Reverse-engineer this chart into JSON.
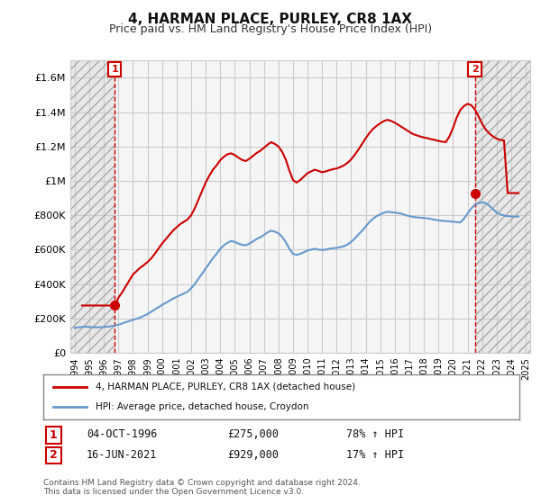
{
  "title": "4, HARMAN PLACE, PURLEY, CR8 1AX",
  "subtitle": "Price paid vs. HM Land Registry's House Price Index (HPI)",
  "legend_line1": "4, HARMAN PLACE, PURLEY, CR8 1AX (detached house)",
  "legend_line2": "HPI: Average price, detached house, Croydon",
  "annotation1_label": "1",
  "annotation1_date": "04-OCT-1996",
  "annotation1_price": "£275,000",
  "annotation1_hpi": "78% ↑ HPI",
  "annotation2_label": "2",
  "annotation2_date": "16-JUN-2021",
  "annotation2_price": "£929,000",
  "annotation2_hpi": "17% ↑ HPI",
  "footer": "Contains HM Land Registry data © Crown copyright and database right 2024.\nThis data is licensed under the Open Government Licence v3.0.",
  "hpi_years": [
    1994.0,
    1994.25,
    1994.5,
    1994.75,
    1995.0,
    1995.25,
    1995.5,
    1995.75,
    1996.0,
    1996.25,
    1996.5,
    1996.75,
    1997.0,
    1997.25,
    1997.5,
    1997.75,
    1998.0,
    1998.25,
    1998.5,
    1998.75,
    1999.0,
    1999.25,
    1999.5,
    1999.75,
    2000.0,
    2000.25,
    2000.5,
    2000.75,
    2001.0,
    2001.25,
    2001.5,
    2001.75,
    2002.0,
    2002.25,
    2002.5,
    2002.75,
    2003.0,
    2003.25,
    2003.5,
    2003.75,
    2004.0,
    2004.25,
    2004.5,
    2004.75,
    2005.0,
    2005.25,
    2005.5,
    2005.75,
    2006.0,
    2006.25,
    2006.5,
    2006.75,
    2007.0,
    2007.25,
    2007.5,
    2007.75,
    2008.0,
    2008.25,
    2008.5,
    2008.75,
    2009.0,
    2009.25,
    2009.5,
    2009.75,
    2010.0,
    2010.25,
    2010.5,
    2010.75,
    2011.0,
    2011.25,
    2011.5,
    2011.75,
    2012.0,
    2012.25,
    2012.5,
    2012.75,
    2013.0,
    2013.25,
    2013.5,
    2013.75,
    2014.0,
    2014.25,
    2014.5,
    2014.75,
    2015.0,
    2015.25,
    2015.5,
    2015.75,
    2016.0,
    2016.25,
    2016.5,
    2016.75,
    2017.0,
    2017.25,
    2017.5,
    2017.75,
    2018.0,
    2018.25,
    2018.5,
    2018.75,
    2019.0,
    2019.25,
    2019.5,
    2019.75,
    2020.0,
    2020.25,
    2020.5,
    2020.75,
    2021.0,
    2021.25,
    2021.5,
    2021.75,
    2022.0,
    2022.25,
    2022.5,
    2022.75,
    2023.0,
    2023.25,
    2023.5,
    2023.75,
    2024.0,
    2024.25,
    2024.5
  ],
  "hpi_values": [
    145000,
    148000,
    150000,
    152000,
    150000,
    149000,
    148000,
    149000,
    150000,
    152000,
    155000,
    158000,
    163000,
    170000,
    178000,
    185000,
    192000,
    198000,
    205000,
    215000,
    225000,
    238000,
    252000,
    265000,
    278000,
    290000,
    302000,
    315000,
    325000,
    335000,
    345000,
    355000,
    375000,
    400000,
    430000,
    460000,
    490000,
    520000,
    550000,
    575000,
    605000,
    625000,
    640000,
    650000,
    645000,
    635000,
    628000,
    625000,
    635000,
    648000,
    662000,
    672000,
    685000,
    700000,
    710000,
    705000,
    695000,
    675000,
    645000,
    605000,
    575000,
    570000,
    575000,
    585000,
    595000,
    600000,
    605000,
    600000,
    598000,
    600000,
    605000,
    608000,
    610000,
    615000,
    620000,
    630000,
    645000,
    665000,
    688000,
    710000,
    735000,
    760000,
    780000,
    795000,
    805000,
    815000,
    820000,
    818000,
    815000,
    812000,
    808000,
    800000,
    795000,
    790000,
    788000,
    786000,
    784000,
    782000,
    778000,
    774000,
    770000,
    768000,
    766000,
    765000,
    762000,
    760000,
    758000,
    780000,
    810000,
    840000,
    860000,
    870000,
    875000,
    870000,
    855000,
    835000,
    815000,
    805000,
    798000,
    795000,
    793000,
    792000,
    793000
  ],
  "red_years": [
    1994.5,
    1994.75,
    1995.0,
    1995.25,
    1995.5,
    1995.75,
    1996.0,
    1996.25,
    1996.5,
    1996.75,
    1997.0,
    1997.25,
    1997.5,
    1997.75,
    1998.0,
    1998.25,
    1998.5,
    1998.75,
    1999.0,
    1999.25,
    1999.5,
    1999.75,
    2000.0,
    2000.25,
    2000.5,
    2000.75,
    2001.0,
    2001.25,
    2001.5,
    2001.75,
    2002.0,
    2002.25,
    2002.5,
    2002.75,
    2003.0,
    2003.25,
    2003.5,
    2003.75,
    2004.0,
    2004.25,
    2004.5,
    2004.75,
    2005.0,
    2005.25,
    2005.5,
    2005.75,
    2006.0,
    2006.25,
    2006.5,
    2006.75,
    2007.0,
    2007.25,
    2007.5,
    2007.75,
    2008.0,
    2008.25,
    2008.5,
    2008.75,
    2009.0,
    2009.25,
    2009.5,
    2009.75,
    2010.0,
    2010.25,
    2010.5,
    2010.75,
    2011.0,
    2011.25,
    2011.5,
    2011.75,
    2012.0,
    2012.25,
    2012.5,
    2012.75,
    2013.0,
    2013.25,
    2013.5,
    2013.75,
    2014.0,
    2014.25,
    2014.5,
    2014.75,
    2015.0,
    2015.25,
    2015.5,
    2015.75,
    2016.0,
    2016.25,
    2016.5,
    2016.75,
    2017.0,
    2017.25,
    2017.5,
    2017.75,
    2018.0,
    2018.25,
    2018.5,
    2018.75,
    2019.0,
    2019.25,
    2019.5,
    2019.75,
    2020.0,
    2020.25,
    2020.5,
    2020.75,
    2021.0,
    2021.25,
    2021.5,
    2021.75,
    2022.0,
    2022.25,
    2022.5,
    2022.75,
    2023.0,
    2023.25,
    2023.5,
    2023.75,
    2024.0,
    2024.25,
    2024.5
  ],
  "red_values": [
    275000,
    275000,
    275000,
    275000,
    275000,
    275000,
    275000,
    275000,
    275000,
    275000,
    320000,
    350000,
    385000,
    420000,
    455000,
    475000,
    495000,
    510000,
    528000,
    548000,
    575000,
    605000,
    635000,
    660000,
    685000,
    710000,
    730000,
    748000,
    762000,
    775000,
    800000,
    840000,
    890000,
    940000,
    990000,
    1030000,
    1065000,
    1090000,
    1120000,
    1140000,
    1155000,
    1160000,
    1150000,
    1135000,
    1122000,
    1115000,
    1128000,
    1145000,
    1162000,
    1175000,
    1192000,
    1210000,
    1225000,
    1215000,
    1200000,
    1170000,
    1125000,
    1060000,
    1005000,
    990000,
    1005000,
    1025000,
    1045000,
    1055000,
    1065000,
    1058000,
    1050000,
    1055000,
    1062000,
    1068000,
    1072000,
    1080000,
    1090000,
    1105000,
    1125000,
    1152000,
    1182000,
    1215000,
    1248000,
    1278000,
    1302000,
    1320000,
    1335000,
    1348000,
    1355000,
    1348000,
    1338000,
    1325000,
    1312000,
    1298000,
    1285000,
    1272000,
    1265000,
    1258000,
    1252000,
    1248000,
    1242000,
    1238000,
    1232000,
    1228000,
    1225000,
    1258000,
    1308000,
    1368000,
    1412000,
    1435000,
    1448000,
    1440000,
    1415000,
    1375000,
    1332000,
    1298000,
    1275000,
    1258000,
    1245000,
    1238000,
    1235000,
    929000,
    929000,
    929000,
    929000
  ],
  "point1_x": 1996.75,
  "point1_y": 275000,
  "point2_x": 2021.5,
  "point2_y": 929000,
  "vline1_x": 1996.75,
  "vline2_x": 2021.5,
  "ylim": [
    0,
    1700000
  ],
  "xlim_left": 1993.7,
  "xlim_right": 2025.3,
  "xtick_years": [
    1994,
    1995,
    1996,
    1997,
    1998,
    1999,
    2000,
    2001,
    2002,
    2003,
    2004,
    2005,
    2006,
    2007,
    2008,
    2009,
    2010,
    2011,
    2012,
    2013,
    2014,
    2015,
    2016,
    2017,
    2018,
    2019,
    2020,
    2021,
    2022,
    2023,
    2024,
    2025
  ],
  "red_color": "#cc0000",
  "blue_color": "#6699cc",
  "vline_color": "#cc0000",
  "hatch_color": "#cccccc",
  "background_color": "#ffffff",
  "plot_bg_color": "#f5f5f5"
}
